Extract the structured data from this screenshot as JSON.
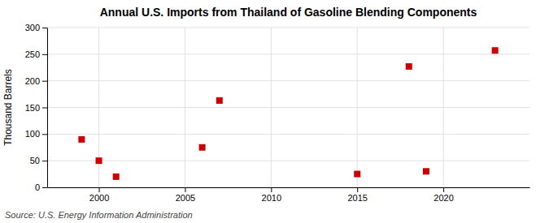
{
  "chart_data": {
    "type": "scatter",
    "title": "Annual U.S. Imports from Thailand of Gasoline Blending Components",
    "ylabel": "Thousand Barrels",
    "source": "Source: U.S. Energy Information Administration",
    "x": [
      1999,
      2000,
      2001,
      2006,
      2007,
      2015,
      2018,
      2019,
      2023
    ],
    "values": [
      90,
      50,
      20,
      75,
      163,
      25,
      227,
      30,
      257
    ],
    "color": "#cc0000",
    "marker": "square",
    "xlim": [
      1997,
      2025
    ],
    "xticks": [
      2000,
      2005,
      2010,
      2015,
      2020
    ],
    "ylim": [
      0,
      300
    ],
    "yticks": [
      0,
      50,
      100,
      150,
      200,
      250,
      300
    ],
    "grid": true
  }
}
